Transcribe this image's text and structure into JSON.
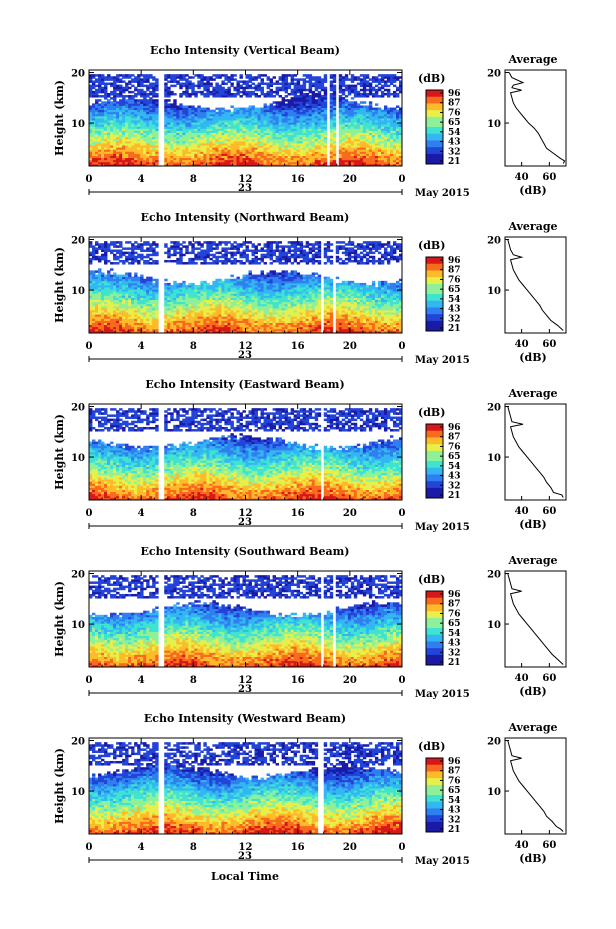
{
  "figure": {
    "xlabel": "Local Time",
    "date_label": "May 2015",
    "day_label": "23",
    "colorbar_title": "(dB)",
    "colorbar_ticks": [
      "96",
      "87",
      "76",
      "65",
      "54",
      "43",
      "32",
      "21"
    ],
    "colors": [
      "#1a1aa6",
      "#2244d8",
      "#2f7ff0",
      "#33b7f2",
      "#3fe3d2",
      "#8ff09a",
      "#e8ef4a",
      "#fdbb2a",
      "#f86a1e",
      "#d81818"
    ]
  },
  "chart_data": [
    {
      "type": "heatmap",
      "title": "Echo Intensity (Vertical Beam)",
      "xlabel": "",
      "ylabel": "Height (km)",
      "xlim": [
        0,
        24
      ],
      "ylim": [
        1.5,
        20.5
      ],
      "xticks": [
        "0",
        "4",
        "8",
        "12",
        "16",
        "20",
        "0"
      ],
      "yticks": [
        "20",
        "10"
      ],
      "gaps_hours": [
        [
          5.3,
          5.7
        ],
        [
          18.3,
          18.5
        ],
        [
          18.9,
          19.1
        ]
      ],
      "echo_top_km": 14.0,
      "profile": {
        "title": "Average",
        "xlabel": "(dB)",
        "xticks": [
          "40",
          "60"
        ],
        "xlim": [
          28,
          72
        ],
        "ylim": [
          1.5,
          20.5
        ],
        "heights_km": [
          2,
          2.5,
          3,
          4,
          5,
          6,
          7,
          8,
          9,
          10,
          11,
          12,
          13,
          14,
          15,
          16,
          16.5,
          17,
          17.5,
          18,
          19,
          20
        ],
        "values_db": [
          70,
          71,
          68,
          63,
          58,
          56,
          54,
          52,
          49,
          45,
          42,
          39,
          36,
          34,
          33,
          32,
          40,
          33,
          34,
          41,
          33,
          31
        ]
      }
    },
    {
      "type": "heatmap",
      "title": "Echo Intensity (Northward Beam)",
      "xlabel": "",
      "ylabel": "Height (km)",
      "xlim": [
        0,
        24
      ],
      "ylim": [
        1.5,
        20.5
      ],
      "xticks": [
        "0",
        "4",
        "8",
        "12",
        "16",
        "20",
        "0"
      ],
      "yticks": [
        "20",
        "10"
      ],
      "gaps_hours": [
        [
          5.3,
          5.7
        ],
        [
          17.8,
          18.1
        ],
        [
          18.7,
          18.9
        ]
      ],
      "echo_top_km": 12.5,
      "profile": {
        "title": "Average",
        "xlabel": "(dB)",
        "xticks": [
          "40",
          "60"
        ],
        "xlim": [
          28,
          72
        ],
        "ylim": [
          1.5,
          20.5
        ],
        "heights_km": [
          2,
          2.5,
          3,
          4,
          5,
          6,
          7,
          8,
          9,
          10,
          11,
          12,
          13,
          14,
          15,
          16,
          16.5,
          17,
          18,
          19,
          20
        ],
        "values_db": [
          70,
          68,
          66,
          61,
          58,
          55,
          53,
          50,
          47,
          44,
          41,
          38,
          36,
          34,
          33,
          32,
          40,
          34,
          32,
          31,
          30
        ]
      }
    },
    {
      "type": "heatmap",
      "title": "Echo Intensity (Eastward Beam)",
      "xlabel": "",
      "ylabel": "Height (km)",
      "xlim": [
        0,
        24
      ],
      "ylim": [
        1.5,
        20.5
      ],
      "xticks": [
        "0",
        "4",
        "8",
        "12",
        "16",
        "20",
        "0"
      ],
      "yticks": [
        "20",
        "10"
      ],
      "gaps_hours": [
        [
          5.3,
          5.7
        ],
        [
          17.8,
          18.1
        ],
        [
          18.6,
          18.8
        ]
      ],
      "echo_top_km": 13.0,
      "profile": {
        "title": "Average",
        "xlabel": "(dB)",
        "xticks": [
          "40",
          "60"
        ],
        "xlim": [
          28,
          72
        ],
        "ylim": [
          1.5,
          20.5
        ],
        "heights_km": [
          2,
          2.5,
          3,
          4,
          5,
          6,
          7,
          8,
          9,
          10,
          11,
          12,
          13,
          14,
          15,
          16,
          16.5,
          17,
          18,
          19,
          20
        ],
        "values_db": [
          70,
          69,
          63,
          61,
          58,
          56,
          53,
          50,
          47,
          44,
          41,
          38,
          36,
          34,
          33,
          32,
          41,
          33,
          32,
          31,
          30
        ]
      }
    },
    {
      "type": "heatmap",
      "title": "Echo Intensity (Southward Beam)",
      "xlabel": "",
      "ylabel": "Height (km)",
      "xlim": [
        0,
        24
      ],
      "ylim": [
        1.5,
        20.5
      ],
      "xticks": [
        "0",
        "4",
        "8",
        "12",
        "16",
        "20",
        "0"
      ],
      "yticks": [
        "20",
        "10"
      ],
      "gaps_hours": [
        [
          5.3,
          5.7
        ],
        [
          17.8,
          18.1
        ],
        [
          18.7,
          18.9
        ]
      ],
      "echo_top_km": 13.0,
      "profile": {
        "title": "Average",
        "xlabel": "(dB)",
        "xticks": [
          "40",
          "60"
        ],
        "xlim": [
          28,
          72
        ],
        "ylim": [
          1.5,
          20.5
        ],
        "heights_km": [
          2,
          2.5,
          3,
          4,
          5,
          6,
          7,
          8,
          9,
          10,
          11,
          12,
          13,
          14,
          15,
          16,
          16.5,
          17,
          18,
          19,
          20
        ],
        "values_db": [
          70,
          68,
          66,
          62,
          59,
          56,
          53,
          50,
          47,
          44,
          41,
          38,
          36,
          34,
          33,
          32,
          40,
          33,
          32,
          31,
          30
        ]
      }
    },
    {
      "type": "heatmap",
      "title": "Echo Intensity (Westward Beam)",
      "xlabel": "",
      "ylabel": "Height (km)",
      "xlim": [
        0,
        24
      ],
      "ylim": [
        1.5,
        20.5
      ],
      "xticks": [
        "0",
        "4",
        "8",
        "12",
        "16",
        "20",
        "0"
      ],
      "yticks": [
        "20",
        "10"
      ],
      "gaps_hours": [
        [
          5.3,
          5.7
        ],
        [
          17.6,
          17.9
        ],
        [
          18.6,
          18.8
        ]
      ],
      "echo_top_km": 14.0,
      "profile": {
        "title": "Average",
        "xlabel": "(dB)",
        "xticks": [
          "40",
          "60"
        ],
        "xlim": [
          28,
          72
        ],
        "ylim": [
          1.5,
          20.5
        ],
        "heights_km": [
          2,
          2.5,
          3,
          4,
          5,
          6,
          7,
          8,
          9,
          10,
          11,
          12,
          13,
          14,
          15,
          16,
          16.5,
          17,
          18,
          19,
          20
        ],
        "values_db": [
          70,
          68,
          65,
          62,
          58,
          56,
          53,
          50,
          47,
          44,
          41,
          38,
          36,
          34,
          33,
          32,
          40,
          33,
          32,
          31,
          30
        ]
      }
    }
  ]
}
